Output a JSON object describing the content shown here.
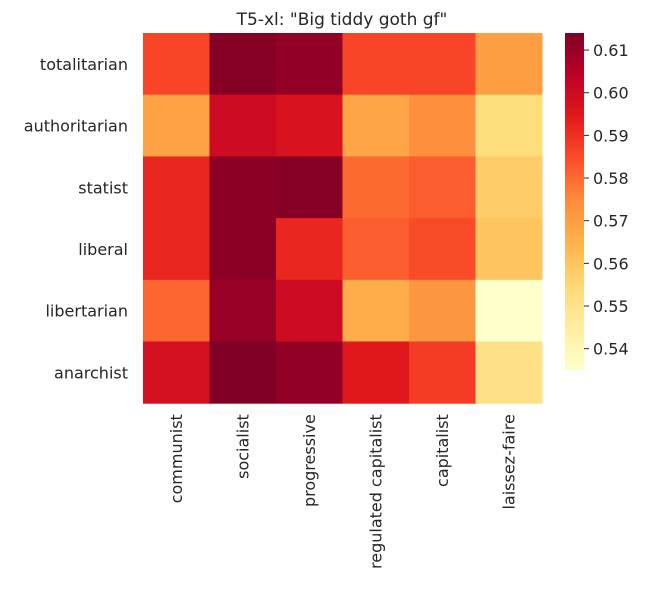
{
  "chart_data": {
    "type": "heatmap",
    "title": "T5-xl: \"Big tiddy goth gf\"",
    "x_categories": [
      "communist",
      "socialist",
      "progressive",
      "regulated capitalist",
      "capitalist",
      "laissez-faire"
    ],
    "y_categories": [
      "totalitarian",
      "authoritarian",
      "statist",
      "liberal",
      "libertarian",
      "anarchist"
    ],
    "values": [
      [
        0.586,
        0.613,
        0.611,
        0.586,
        0.586,
        0.57
      ],
      [
        0.569,
        0.6,
        0.597,
        0.568,
        0.574,
        0.553
      ],
      [
        0.592,
        0.612,
        0.613,
        0.58,
        0.582,
        0.558
      ],
      [
        0.592,
        0.612,
        0.592,
        0.582,
        0.585,
        0.56
      ],
      [
        0.581,
        0.61,
        0.6,
        0.566,
        0.572,
        0.535
      ],
      [
        0.598,
        0.614,
        0.611,
        0.595,
        0.588,
        0.551
      ]
    ],
    "colorbar": {
      "colormap": "YlOrRd",
      "range": [
        0.535,
        0.614
      ],
      "ticks": [
        0.54,
        0.55,
        0.56,
        0.57,
        0.58,
        0.59,
        0.6,
        0.61
      ],
      "tick_labels": [
        "0.54",
        "0.55",
        "0.56",
        "0.57",
        "0.58",
        "0.59",
        "0.60",
        "0.61"
      ]
    },
    "grid": false
  }
}
